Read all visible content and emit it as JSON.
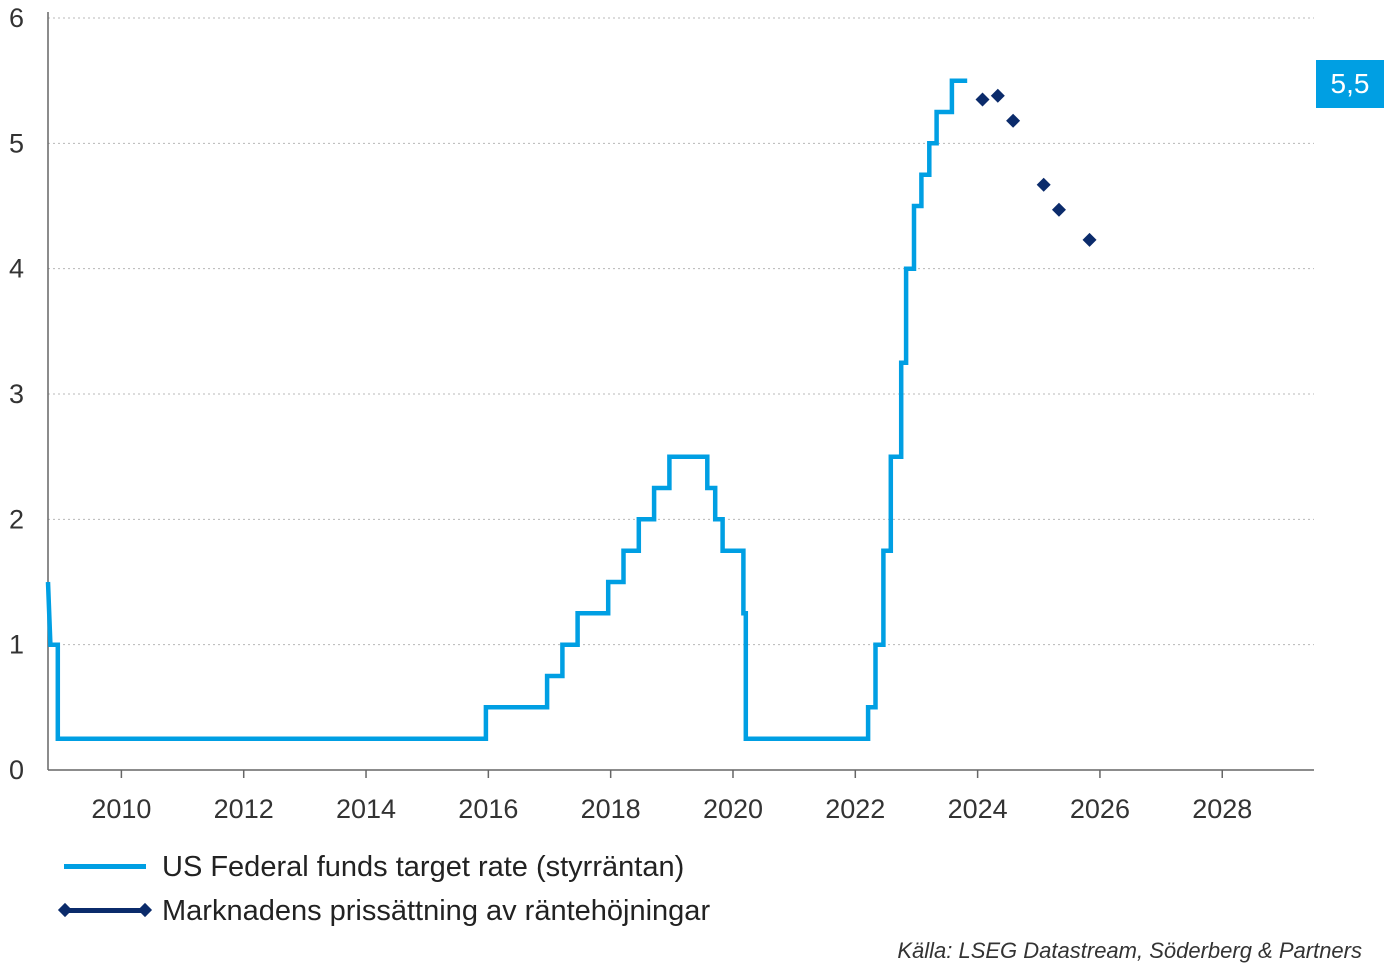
{
  "chart_data": {
    "type": "line",
    "title": "",
    "xlabel": "",
    "ylabel": "",
    "xlim": [
      2008.8,
      2029.5
    ],
    "ylim": [
      0,
      6
    ],
    "y_ticks": [
      0,
      1,
      2,
      3,
      4,
      5,
      6
    ],
    "x_ticks": [
      2010,
      2012,
      2014,
      2016,
      2018,
      2020,
      2022,
      2024,
      2026,
      2028
    ],
    "grid": "horizontal dotted",
    "legend_position": "bottom-left",
    "series": [
      {
        "name": "US Federal funds target rate (styrräntan)",
        "style": "step-line",
        "color": "#009fe3",
        "points": [
          [
            2008.8,
            1.5
          ],
          [
            2008.84,
            1.0
          ],
          [
            2008.96,
            1.0
          ],
          [
            2008.96,
            0.25
          ],
          [
            2015.96,
            0.25
          ],
          [
            2015.96,
            0.5
          ],
          [
            2016.96,
            0.5
          ],
          [
            2016.96,
            0.75
          ],
          [
            2017.21,
            0.75
          ],
          [
            2017.21,
            1.0
          ],
          [
            2017.46,
            1.0
          ],
          [
            2017.46,
            1.25
          ],
          [
            2017.96,
            1.25
          ],
          [
            2017.96,
            1.5
          ],
          [
            2018.21,
            1.5
          ],
          [
            2018.21,
            1.75
          ],
          [
            2018.46,
            1.75
          ],
          [
            2018.46,
            2.0
          ],
          [
            2018.71,
            2.0
          ],
          [
            2018.71,
            2.25
          ],
          [
            2018.96,
            2.25
          ],
          [
            2018.96,
            2.5
          ],
          [
            2019.58,
            2.5
          ],
          [
            2019.58,
            2.25
          ],
          [
            2019.71,
            2.25
          ],
          [
            2019.71,
            2.0
          ],
          [
            2019.83,
            2.0
          ],
          [
            2019.83,
            1.75
          ],
          [
            2020.17,
            1.75
          ],
          [
            2020.17,
            1.25
          ],
          [
            2020.21,
            1.25
          ],
          [
            2020.21,
            0.25
          ],
          [
            2022.21,
            0.25
          ],
          [
            2022.21,
            0.5
          ],
          [
            2022.33,
            0.5
          ],
          [
            2022.33,
            1.0
          ],
          [
            2022.46,
            1.0
          ],
          [
            2022.46,
            1.75
          ],
          [
            2022.58,
            1.75
          ],
          [
            2022.58,
            2.5
          ],
          [
            2022.75,
            2.5
          ],
          [
            2022.75,
            3.25
          ],
          [
            2022.83,
            3.25
          ],
          [
            2022.83,
            4.0
          ],
          [
            2022.96,
            4.0
          ],
          [
            2022.96,
            4.5
          ],
          [
            2023.08,
            4.5
          ],
          [
            2023.08,
            4.75
          ],
          [
            2023.21,
            4.75
          ],
          [
            2023.21,
            5.0
          ],
          [
            2023.33,
            5.0
          ],
          [
            2023.33,
            5.25
          ],
          [
            2023.58,
            5.25
          ],
          [
            2023.58,
            5.5
          ],
          [
            2023.83,
            5.5
          ]
        ]
      },
      {
        "name": "Marknadens prissättning av räntehöjningar",
        "style": "markers",
        "color": "#0b2b6b",
        "points": [
          [
            2024.08,
            5.35
          ],
          [
            2024.33,
            5.38
          ],
          [
            2024.58,
            5.18
          ],
          [
            2025.08,
            4.67
          ],
          [
            2025.33,
            4.47
          ],
          [
            2025.83,
            4.23
          ]
        ]
      }
    ],
    "last_value_label": "5,5",
    "last_value_color": "#009fe3"
  },
  "legend": {
    "fed_rate": "US Federal funds target rate (styrräntan)",
    "market_pricing": "Marknadens prissättning av räntehöjningar"
  },
  "source": "Källa: LSEG Datastream, Söderberg & Partners",
  "badge": "5,5"
}
